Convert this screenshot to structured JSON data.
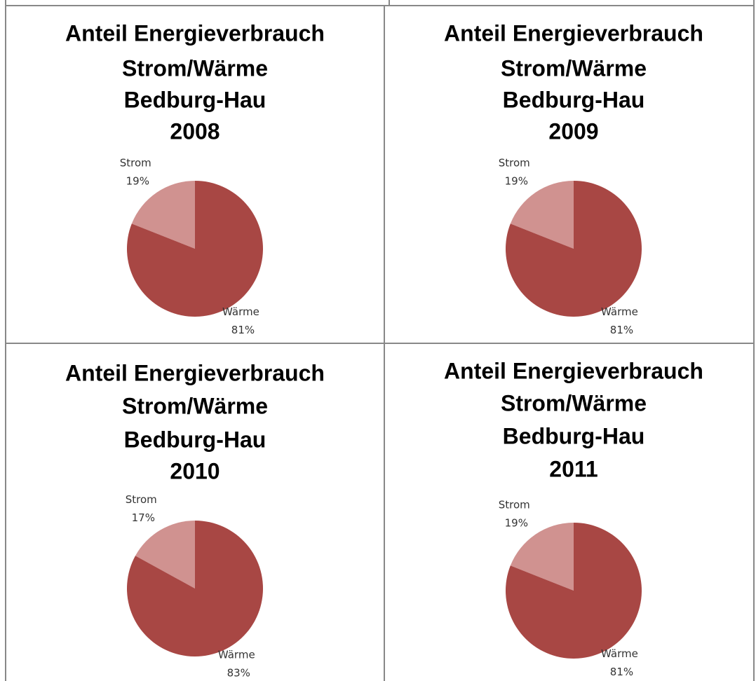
{
  "chart_data": [
    {
      "type": "pie",
      "title": [
        "Anteil Energieverbrauch",
        "Strom/Wärme",
        "Bedburg-Hau",
        "2008"
      ],
      "categories": [
        "Strom",
        "Wärme"
      ],
      "values": [
        19,
        81
      ],
      "value_labels": [
        "19%",
        "81%"
      ],
      "colors": [
        "#d09290",
        "#a84744"
      ]
    },
    {
      "type": "pie",
      "title": [
        "Anteil Energieverbrauch",
        "Strom/Wärme",
        "Bedburg-Hau",
        "2009"
      ],
      "categories": [
        "Strom",
        "Wärme"
      ],
      "values": [
        19,
        81
      ],
      "value_labels": [
        "19%",
        "81%"
      ],
      "colors": [
        "#d09290",
        "#a84744"
      ]
    },
    {
      "type": "pie",
      "title": [
        "Anteil Energieverbrauch",
        "Strom/Wärme",
        "Bedburg-Hau",
        "2010"
      ],
      "categories": [
        "Strom",
        "Wärme"
      ],
      "values": [
        17,
        83
      ],
      "value_labels": [
        "17%",
        "83%"
      ],
      "colors": [
        "#d09290",
        "#a84744"
      ]
    },
    {
      "type": "pie",
      "title": [
        "Anteil Energieverbrauch",
        "Strom/Wärme",
        "Bedburg-Hau",
        "2011"
      ],
      "categories": [
        "Strom",
        "Wärme"
      ],
      "values": [
        19,
        81
      ],
      "value_labels": [
        "19%",
        "81%"
      ],
      "colors": [
        "#d09290",
        "#a84744"
      ]
    }
  ]
}
